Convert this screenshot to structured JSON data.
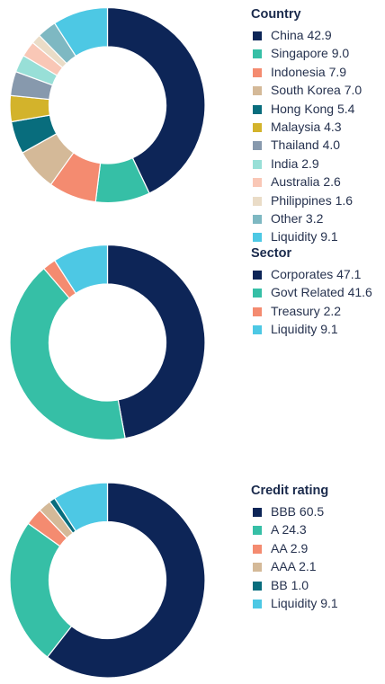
{
  "chart_data": [
    {
      "type": "pie",
      "title": "Country",
      "categories": [
        "China",
        "Singapore",
        "Indonesia",
        "South Korea",
        "Hong Kong",
        "Malaysia",
        "Thailand",
        "India",
        "Australia",
        "Philippines",
        "Other",
        "Liquidity"
      ],
      "values": [
        42.9,
        9.0,
        7.9,
        7.0,
        5.4,
        4.3,
        4.0,
        2.9,
        2.6,
        1.6,
        3.2,
        9.1
      ],
      "labels": [
        "China 42.9",
        "Singapore 9.0",
        "Indonesia 7.9",
        "South Korea 7.0",
        "Hong Kong 5.4",
        "Malaysia 4.3",
        "Thailand 4.0",
        "India 2.9",
        "Australia 2.6",
        "Philippines 1.6",
        "Other 3.2",
        "Liquidity 9.1"
      ],
      "colors": [
        "#0d2557",
        "#36bfa6",
        "#f48b70",
        "#d4b998",
        "#086d7d",
        "#d3b32b",
        "#8799ad",
        "#98dfd7",
        "#f9c7b6",
        "#eadcc7",
        "#7eb8c2",
        "#4dc8e4"
      ],
      "legend_position": "right"
    },
    {
      "type": "pie",
      "title": "Sector",
      "categories": [
        "Corporates",
        "Govt Related",
        "Treasury",
        "Liquidity"
      ],
      "values": [
        47.1,
        41.6,
        2.2,
        9.1
      ],
      "labels": [
        "Corporates 47.1",
        "Govt Related 41.6",
        "Treasury 2.2",
        "Liquidity 9.1"
      ],
      "colors": [
        "#0d2557",
        "#36bfa6",
        "#f48b70",
        "#4dc8e4"
      ],
      "legend_position": "right"
    },
    {
      "type": "pie",
      "title": "Credit rating",
      "categories": [
        "BBB",
        "A",
        "AA",
        "AAA",
        "BB",
        "Liquidity"
      ],
      "values": [
        60.5,
        24.3,
        2.9,
        2.1,
        1.0,
        9.1
      ],
      "labels": [
        "BBB 60.5",
        "A 24.3",
        "AA 2.9",
        "AAA 2.1",
        "BB 1.0",
        "Liquidity 9.1"
      ],
      "colors": [
        "#0d2557",
        "#36bfa6",
        "#f48b70",
        "#d4b998",
        "#086d7d",
        "#4dc8e4"
      ],
      "legend_position": "right"
    }
  ]
}
